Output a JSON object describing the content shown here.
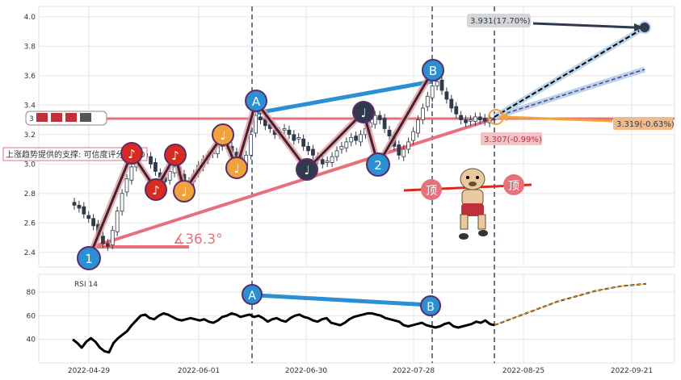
{
  "colors": {
    "up": "#ffffff",
    "down": "#2f3b4c",
    "trend_pink": "#e8707a",
    "wave_blue": "#2b8fd3",
    "circle_dark": "#2f3b4c",
    "circle_red": "#d82a1e",
    "circle_orange": "#f2a23c",
    "rsi_line": "#000000",
    "rsi_forecast": "#f2a23c",
    "forecast_dark": "#2f3b4c",
    "forecast_light": "#b8d3ea",
    "forecast_purple": "#5b3d87"
  },
  "chart_data": [
    {
      "type": "candlestick",
      "ylim": [
        2.3,
        4.07
      ],
      "yticks": [
        "2.4",
        "2.6",
        "2.8",
        "3.0",
        "3.2",
        "3.4",
        "3.6",
        "3.8",
        "4.0"
      ],
      "x_dates": [
        "2022-04-29",
        "2022-06-01",
        "2022-06-30",
        "2022-07-28",
        "2022-08-25",
        "2022-09-21"
      ],
      "grid": true,
      "close_series": [
        2.72,
        2.7,
        2.66,
        2.63,
        2.58,
        2.52,
        2.46,
        2.44,
        2.55,
        2.68,
        2.8,
        2.9,
        2.98,
        3.04,
        3.08,
        3.05,
        3.0,
        2.95,
        2.91,
        2.88,
        2.95,
        2.98,
        2.92,
        2.86,
        2.88,
        2.93,
        2.99,
        3.03,
        3.06,
        3.08,
        3.12,
        3.16,
        3.13,
        3.08,
        3.04,
        3.0,
        3.06,
        3.2,
        3.33,
        3.3,
        3.26,
        3.24,
        3.2,
        3.22,
        3.24,
        3.2,
        3.16,
        3.18,
        3.12,
        3.09,
        3.06,
        3.03,
        3.0,
        3.02,
        3.05,
        3.09,
        3.12,
        3.15,
        3.18,
        3.16,
        3.2,
        3.24,
        3.28,
        3.33,
        3.3,
        3.24,
        3.19,
        3.12,
        3.06,
        3.1,
        3.15,
        3.22,
        3.3,
        3.38,
        3.46,
        3.53,
        3.56,
        3.5,
        3.44,
        3.38,
        3.34,
        3.3,
        3.28,
        3.3,
        3.32,
        3.3,
        3.29,
        3.31,
        3.3
      ],
      "annotations": {
        "support_text": "上涨趋势提供的支撑: 可信度评分：3.0",
        "angle_text": "∡36.3°",
        "price_up_label": "3.931(17.70%)",
        "price_mid_label": "3.319(-0.63%)",
        "price_low_label": "3.307(-0.99%)",
        "left_price_label": "3",
        "top_marker_text": "顶",
        "wave_points": [
          "1",
          "2"
        ],
        "pattern_points": [
          "A",
          "B"
        ],
        "music_note": "♪",
        "quarter_note": "♩"
      }
    },
    {
      "type": "line",
      "title": "RSI 14",
      "ylim": [
        20,
        95
      ],
      "yticks": [
        "40",
        "60",
        "80"
      ],
      "values": [
        40,
        37,
        33,
        38,
        41,
        38,
        33,
        30,
        29,
        37,
        41,
        44,
        47,
        52,
        56,
        60,
        61,
        58,
        57,
        60,
        62,
        61,
        59,
        57,
        56,
        57,
        58,
        57,
        56,
        57,
        55,
        54,
        56,
        59,
        60,
        62,
        61,
        59,
        60,
        61,
        59,
        60,
        58,
        55,
        57,
        58,
        56,
        55,
        58,
        60,
        61,
        59,
        58,
        56,
        55,
        57,
        58,
        54,
        53,
        52,
        54,
        57,
        59,
        60,
        61,
        62,
        62,
        61,
        60,
        58,
        57,
        56,
        55,
        52,
        51,
        52,
        53,
        54,
        52,
        51,
        50,
        51,
        53,
        54,
        51,
        50,
        51,
        52,
        53,
        55,
        54,
        56,
        53,
        52
      ],
      "forecast": [
        52,
        56,
        60,
        64,
        68,
        72,
        75,
        78,
        81,
        83,
        85,
        86,
        87
      ]
    }
  ]
}
